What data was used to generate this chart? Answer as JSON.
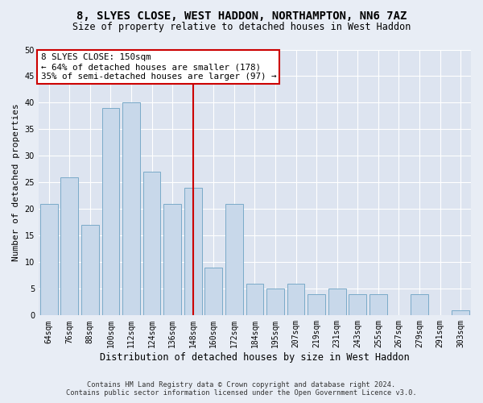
{
  "title": "8, SLYES CLOSE, WEST HADDON, NORTHAMPTON, NN6 7AZ",
  "subtitle": "Size of property relative to detached houses in West Haddon",
  "xlabel": "Distribution of detached houses by size in West Haddon",
  "ylabel": "Number of detached properties",
  "categories": [
    "64sqm",
    "76sqm",
    "88sqm",
    "100sqm",
    "112sqm",
    "124sqm",
    "136sqm",
    "148sqm",
    "160sqm",
    "172sqm",
    "184sqm",
    "195sqm",
    "207sqm",
    "219sqm",
    "231sqm",
    "243sqm",
    "255sqm",
    "267sqm",
    "279sqm",
    "291sqm",
    "303sqm"
  ],
  "values": [
    21,
    26,
    17,
    39,
    40,
    27,
    21,
    24,
    9,
    21,
    6,
    5,
    6,
    4,
    5,
    4,
    4,
    0,
    4,
    0,
    1
  ],
  "bar_color": "#c8d8ea",
  "bar_edge_color": "#7aaac8",
  "vline_index": 7,
  "vline_color": "#cc0000",
  "annotation_title": "8 SLYES CLOSE: 150sqm",
  "annotation_line1": "← 64% of detached houses are smaller (178)",
  "annotation_line2": "35% of semi-detached houses are larger (97) →",
  "annotation_box_facecolor": "#ffffff",
  "annotation_box_edgecolor": "#cc0000",
  "footer1": "Contains HM Land Registry data © Crown copyright and database right 2024.",
  "footer2": "Contains public sector information licensed under the Open Government Licence v3.0.",
  "ylim": [
    0,
    50
  ],
  "yticks": [
    0,
    5,
    10,
    15,
    20,
    25,
    30,
    35,
    40,
    45,
    50
  ],
  "bg_color": "#e8edf5",
  "plot_bg": "#dde4f0",
  "grid_color": "#ffffff",
  "title_fontsize": 10,
  "subtitle_fontsize": 8.5,
  "ylabel_fontsize": 8,
  "xlabel_fontsize": 8.5,
  "tick_fontsize": 7,
  "annotation_fontsize": 7.8,
  "footer_fontsize": 6.2
}
